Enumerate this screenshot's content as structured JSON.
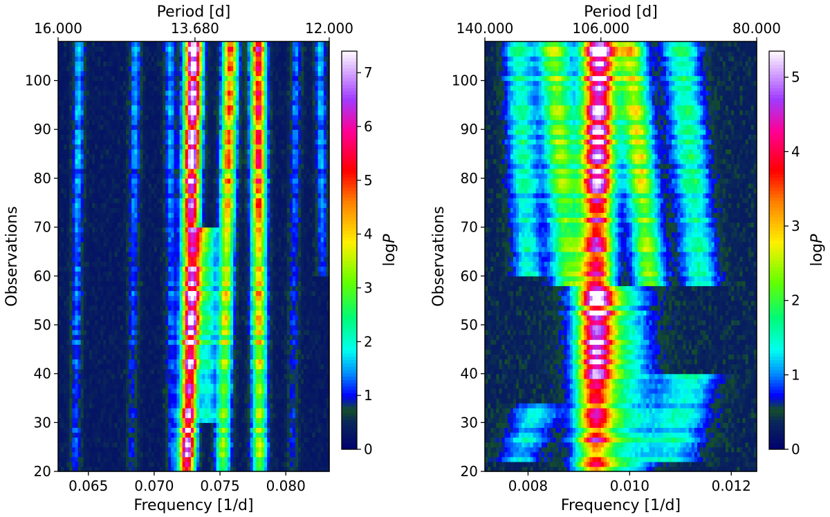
{
  "chart_data": [
    {
      "type": "heatmap",
      "title": "",
      "xlabel": "Frequency [1/d]",
      "ylabel": "Observations",
      "top_xlabel": "Period [d]",
      "colorbar_label": "log",
      "colorbar_label_italic": "P",
      "xlim": [
        0.0627,
        0.0833
      ],
      "ylim": [
        20,
        108
      ],
      "xticks": [
        {
          "value": 0.065,
          "label": "0.065"
        },
        {
          "value": 0.07,
          "label": "0.070"
        },
        {
          "value": 0.075,
          "label": "0.075"
        },
        {
          "value": 0.08,
          "label": "0.080"
        }
      ],
      "yticks": [
        {
          "value": 20,
          "label": "20"
        },
        {
          "value": 30,
          "label": "30"
        },
        {
          "value": 40,
          "label": "40"
        },
        {
          "value": 50,
          "label": "50"
        },
        {
          "value": 60,
          "label": "60"
        },
        {
          "value": 70,
          "label": "70"
        },
        {
          "value": 80,
          "label": "80"
        },
        {
          "value": 90,
          "label": "90"
        },
        {
          "value": 100,
          "label": "100"
        }
      ],
      "top_ticks": [
        {
          "freq": 0.0625,
          "label": "16.000"
        },
        {
          "freq": 0.0731,
          "label": "13.680"
        },
        {
          "freq": 0.08333,
          "label": "12.000"
        }
      ],
      "colorbar_range": [
        0,
        7.4
      ],
      "colorbar_ticks": [
        0,
        1,
        2,
        3,
        4,
        5,
        6,
        7
      ],
      "ridges": [
        {
          "f_start": 0.0725,
          "f_end": 0.073,
          "y_from": 20,
          "y_to": 108,
          "peak_low": 3.6,
          "peak_high": 7.2,
          "width": 0.00045
        },
        {
          "f_start": 0.0724,
          "f_end": 0.0735,
          "y_from": 20,
          "y_to": 70,
          "peak_low": 2.2,
          "peak_high": 3.0,
          "width": 0.0004
        },
        {
          "f_start": 0.0752,
          "f_end": 0.0758,
          "y_from": 20,
          "y_to": 108,
          "peak_low": 2.6,
          "peak_high": 4.4,
          "width": 0.0004
        },
        {
          "f_start": 0.074,
          "f_end": 0.0742,
          "y_from": 30,
          "y_to": 70,
          "peak_low": 1.6,
          "peak_high": 2.2,
          "width": 0.0004
        },
        {
          "f_start": 0.078,
          "f_end": 0.0779,
          "y_from": 20,
          "y_to": 108,
          "peak_low": 2.8,
          "peak_high": 5.2,
          "width": 0.0004
        },
        {
          "f_start": 0.064,
          "f_end": 0.0643,
          "y_from": 20,
          "y_to": 108,
          "peak_low": 0.8,
          "peak_high": 1.3,
          "width": 0.0003
        },
        {
          "f_start": 0.0683,
          "f_end": 0.0686,
          "y_from": 20,
          "y_to": 108,
          "peak_low": 0.6,
          "peak_high": 1.2,
          "width": 0.0003
        },
        {
          "f_start": 0.0713,
          "f_end": 0.0712,
          "y_from": 20,
          "y_to": 108,
          "peak_low": 0.7,
          "peak_high": 1.2,
          "width": 0.0003
        },
        {
          "f_start": 0.0805,
          "f_end": 0.0808,
          "y_from": 20,
          "y_to": 108,
          "peak_low": 0.6,
          "peak_high": 1.0,
          "width": 0.0003
        },
        {
          "f_start": 0.0828,
          "f_end": 0.0826,
          "y_from": 60,
          "y_to": 108,
          "peak_low": 0.6,
          "peak_high": 1.3,
          "width": 0.0003
        }
      ]
    },
    {
      "type": "heatmap",
      "title": "",
      "xlabel": "Frequency [1/d]",
      "ylabel": "Observations",
      "top_xlabel": "Period [d]",
      "colorbar_label": "log",
      "colorbar_label_italic": "P",
      "xlim": [
        0.00715,
        0.0125
      ],
      "ylim": [
        20,
        108
      ],
      "xticks": [
        {
          "value": 0.008,
          "label": "0.008"
        },
        {
          "value": 0.01,
          "label": "0.010"
        },
        {
          "value": 0.012,
          "label": "0.012"
        }
      ],
      "yticks": [
        {
          "value": 20,
          "label": "20"
        },
        {
          "value": 30,
          "label": "30"
        },
        {
          "value": 40,
          "label": "40"
        },
        {
          "value": 50,
          "label": "50"
        },
        {
          "value": 60,
          "label": "60"
        },
        {
          "value": 70,
          "label": "70"
        },
        {
          "value": 80,
          "label": "80"
        },
        {
          "value": 90,
          "label": "90"
        },
        {
          "value": 100,
          "label": "100"
        }
      ],
      "top_ticks": [
        {
          "freq": 0.007143,
          "label": "140.000"
        },
        {
          "freq": 0.009434,
          "label": "106.000"
        },
        {
          "freq": 0.0125,
          "label": "80.000"
        }
      ],
      "colorbar_range": [
        0,
        5.35
      ],
      "colorbar_ticks": [
        0,
        1,
        2,
        3,
        4,
        5
      ],
      "ridges": [
        {
          "f_start": 0.0093,
          "f_end": 0.0094,
          "y_from": 20,
          "y_to": 108,
          "peak_low": 2.2,
          "peak_high": 5.2,
          "width": 0.00022
        },
        {
          "f_start": 0.0088,
          "f_end": 0.0085,
          "y_from": 58,
          "y_to": 108,
          "peak_low": 1.4,
          "peak_high": 2.1,
          "width": 0.00022
        },
        {
          "f_start": 0.0104,
          "f_end": 0.01,
          "y_from": 58,
          "y_to": 108,
          "peak_low": 1.6,
          "peak_high": 2.4,
          "width": 0.0002
        },
        {
          "f_start": 0.0114,
          "f_end": 0.011,
          "y_from": 58,
          "y_to": 108,
          "peak_low": 1.0,
          "peak_high": 1.4,
          "width": 0.00025
        },
        {
          "f_start": 0.008,
          "f_end": 0.0078,
          "y_from": 60,
          "y_to": 108,
          "peak_low": 0.9,
          "peak_high": 1.3,
          "width": 0.0002
        },
        {
          "f_start": 0.0097,
          "f_end": 0.0096,
          "y_from": 20,
          "y_to": 58,
          "peak_low": 1.4,
          "peak_high": 1.9,
          "width": 0.0005
        },
        {
          "f_start": 0.0078,
          "f_end": 0.0082,
          "y_from": 22,
          "y_to": 34,
          "peak_low": 0.9,
          "peak_high": 1.4,
          "width": 0.0003
        },
        {
          "f_start": 0.0108,
          "f_end": 0.0112,
          "y_from": 22,
          "y_to": 40,
          "peak_low": 1.0,
          "peak_high": 1.5,
          "width": 0.0004
        }
      ]
    }
  ]
}
